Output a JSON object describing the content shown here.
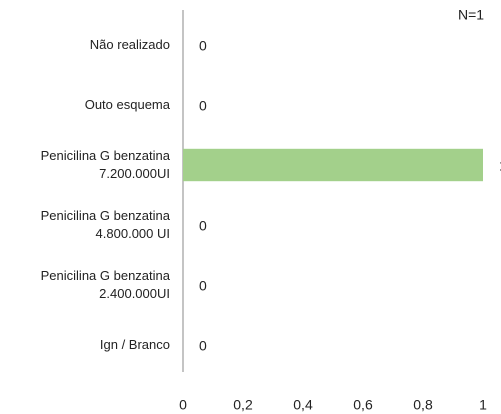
{
  "chart_data": {
    "type": "bar",
    "orientation": "horizontal",
    "annotation": "N=1",
    "categories": [
      "Não realizado",
      "Outo esquema",
      "Penicilina G benzatina 7.200.000UI",
      "Penicilina G benzatina 4.800.000 UI",
      "Penicilina G benzatina 2.400.000UI",
      "Ign / Branco"
    ],
    "values": [
      0,
      0,
      1,
      0,
      0,
      0
    ],
    "color": "#a3d08b",
    "xlim": [
      0,
      1
    ],
    "xticks": [
      0,
      {
        "value": 0.2,
        "label": "0,2"
      },
      {
        "value": 0.4,
        "label": "0,4"
      },
      {
        "value": 0.6,
        "label": "0,6"
      },
      {
        "value": 0.8,
        "label": "0,8"
      },
      1
    ],
    "grid": false
  }
}
